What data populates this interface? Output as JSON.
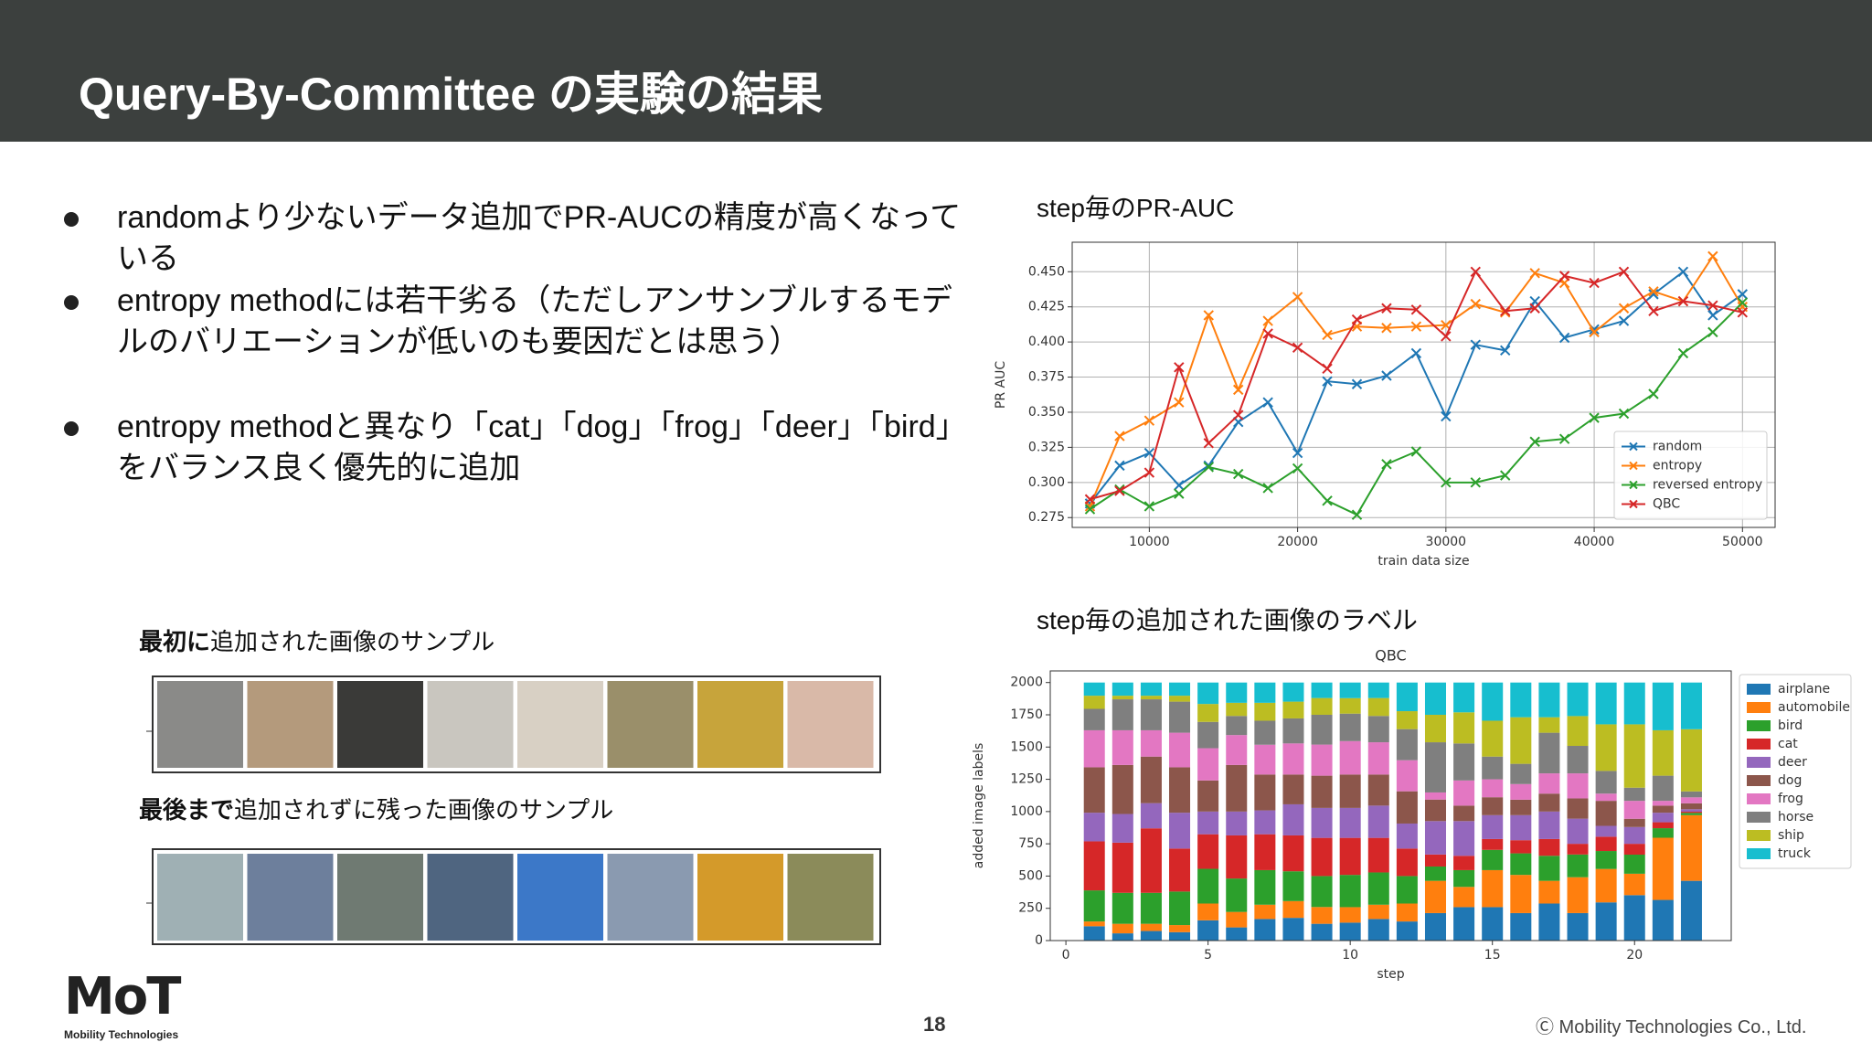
{
  "header": {
    "title": "Query-By-Committee の実験の結果"
  },
  "bullets": [
    "randomより少ないデータ追加でPR-AUCの精度が高くなっている",
    "entropy methodには若干劣る（ただしアンサンブルするモデルのバリエーションが低いのも要因だとは思う）",
    "entropy methodと異なり「cat」「dog」「frog」「deer」「bird」をバランス良く優先的に追加"
  ],
  "captions": {
    "pr_auc": "step毎のPR-AUC",
    "labels": "step毎の追加された画像のラベル",
    "samples_first": {
      "emphasis": "最初に",
      "text": "追加された画像のサンプル"
    },
    "samples_last": {
      "emphasis": "最後まで",
      "text": "追加されずに残った画像のサンプル"
    }
  },
  "chart_data": [
    {
      "type": "line",
      "xlabel": "train data size",
      "ylabel": "PR AUC",
      "x": [
        6000,
        8000,
        10000,
        12000,
        14000,
        16000,
        18000,
        20000,
        22000,
        24000,
        26000,
        28000,
        30000,
        32000,
        34000,
        36000,
        38000,
        40000,
        42000,
        44000,
        46000,
        48000,
        50000
      ],
      "series": [
        {
          "name": "random",
          "color": "#1f77b4",
          "values": [
            0.285,
            0.312,
            0.321,
            0.298,
            0.312,
            0.343,
            0.357,
            0.321,
            0.372,
            0.37,
            0.376,
            0.392,
            0.347,
            0.398,
            0.394,
            0.429,
            0.403,
            0.409,
            0.415,
            0.434,
            0.45,
            0.419,
            0.434
          ]
        },
        {
          "name": "entropy",
          "color": "#ff7f0e",
          "values": [
            0.283,
            0.333,
            0.344,
            0.357,
            0.419,
            0.366,
            0.415,
            0.432,
            0.405,
            0.411,
            0.41,
            0.411,
            0.412,
            0.427,
            0.421,
            0.449,
            0.442,
            0.407,
            0.424,
            0.436,
            0.429,
            0.461,
            0.425
          ]
        },
        {
          "name": "reversed entropy",
          "color": "#2ca02c",
          "values": [
            0.281,
            0.295,
            0.283,
            0.292,
            0.311,
            0.306,
            0.296,
            0.31,
            0.287,
            0.277,
            0.313,
            0.322,
            0.3,
            0.3,
            0.305,
            0.329,
            0.331,
            0.346,
            0.349,
            0.363,
            0.392,
            0.407,
            0.428
          ]
        },
        {
          "name": "QBC",
          "color": "#d62728",
          "values": [
            0.288,
            0.294,
            0.307,
            0.382,
            0.328,
            0.348,
            0.406,
            0.396,
            0.381,
            0.416,
            0.424,
            0.423,
            0.404,
            0.45,
            0.422,
            0.424,
            0.447,
            0.442,
            0.45,
            0.422,
            0.429,
            0.426,
            0.421
          ]
        }
      ],
      "xlim": [
        4800,
        52200
      ],
      "ylim": [
        0.268,
        0.471
      ],
      "xticks": [
        10000,
        20000,
        30000,
        40000,
        50000
      ],
      "yticks": [
        {
          "value": 0.275,
          "label": "0.275"
        },
        {
          "value": 0.3,
          "label": "0.300"
        },
        {
          "value": 0.325,
          "label": "0.325"
        },
        {
          "value": 0.35,
          "label": "0.350"
        },
        {
          "value": 0.375,
          "label": "0.375"
        },
        {
          "value": 0.4,
          "label": "0.400"
        },
        {
          "value": 0.425,
          "label": "0.425"
        },
        {
          "value": 0.45,
          "label": "0.450"
        }
      ],
      "grid": true,
      "legend": "lower right"
    },
    {
      "type": "bar",
      "stacked": true,
      "title": "QBC",
      "xlabel": "step",
      "ylabel": "added image labels",
      "x": [
        1,
        2,
        3,
        4,
        5,
        6,
        7,
        8,
        9,
        10,
        11,
        12,
        13,
        14,
        15,
        16,
        17,
        18,
        19,
        20,
        21,
        22
      ],
      "series": [
        {
          "name": "airplane",
          "color": "#1f77b4",
          "values": [
            111,
            56,
            74,
            65,
            157,
            102,
            167,
            176,
            130,
            139,
            167,
            148,
            213,
            259,
            259,
            213,
            287,
            213,
            296,
            352,
            315,
            463
          ]
        },
        {
          "name": "automobile",
          "color": "#ff7f0e",
          "values": [
            37,
            74,
            56,
            55,
            130,
            120,
            111,
            130,
            130,
            120,
            111,
            139,
            250,
            157,
            287,
            296,
            176,
            278,
            259,
            166,
            482,
            509
          ]
        },
        {
          "name": "bird",
          "color": "#2ca02c",
          "values": [
            241,
            240,
            240,
            260,
            269,
            259,
            268,
            231,
            240,
            250,
            250,
            213,
            111,
            130,
            157,
            167,
            194,
            176,
            139,
            148,
            74,
            18
          ]
        },
        {
          "name": "cat",
          "color": "#d62728",
          "values": [
            380,
            389,
            500,
            333,
            268,
            334,
            278,
            278,
            296,
            287,
            268,
            213,
            93,
            111,
            84,
            102,
            130,
            83,
            111,
            84,
            46,
            9
          ]
        },
        {
          "name": "deer",
          "color": "#9467bd",
          "values": [
            222,
            222,
            195,
            278,
            176,
            185,
            185,
            241,
            232,
            232,
            250,
            194,
            259,
            269,
            185,
            194,
            213,
            195,
            84,
            130,
            74,
            19
          ]
        },
        {
          "name": "dog",
          "color": "#8c564b",
          "values": [
            352,
            380,
            361,
            352,
            241,
            361,
            278,
            231,
            250,
            259,
            241,
            250,
            167,
            120,
            139,
            120,
            139,
            157,
            194,
            64,
            55,
            46
          ]
        },
        {
          "name": "frog",
          "color": "#e377c2",
          "values": [
            287,
            269,
            204,
            268,
            250,
            232,
            231,
            241,
            241,
            259,
            250,
            241,
            55,
            195,
            139,
            121,
            157,
            194,
            56,
            139,
            37,
            46
          ]
        },
        {
          "name": "horse",
          "color": "#7f7f7f",
          "values": [
            166,
            240,
            240,
            241,
            204,
            148,
            186,
            194,
            231,
            213,
            204,
            241,
            389,
            287,
            176,
            157,
            315,
            213,
            176,
            102,
            195,
            46
          ]
        },
        {
          "name": "ship",
          "color": "#bcbd22",
          "values": [
            102,
            28,
            28,
            46,
            139,
            102,
            139,
            130,
            130,
            120,
            139,
            139,
            213,
            241,
            278,
            361,
            120,
            231,
            361,
            491,
            352,
            482
          ]
        },
        {
          "name": "truck",
          "color": "#17becf",
          "values": [
            102,
            102,
            102,
            102,
            166,
            157,
            157,
            148,
            120,
            121,
            120,
            222,
            250,
            231,
            296,
            269,
            269,
            260,
            324,
            324,
            370,
            362
          ]
        }
      ],
      "xlim": [
        -0.55,
        23.4
      ],
      "ylim": [
        0,
        2090
      ],
      "xticks": [
        0,
        5,
        10,
        15,
        20
      ],
      "yticks": [
        0,
        250,
        500,
        750,
        1000,
        1250,
        1500,
        1750,
        2000
      ],
      "grid": false,
      "legend": "right"
    }
  ],
  "footer": {
    "logo": "MoT",
    "logo_sub": "Mobility Technologies",
    "page": 18,
    "copyright": "Ⓒ Mobility Technologies Co., Ltd."
  }
}
